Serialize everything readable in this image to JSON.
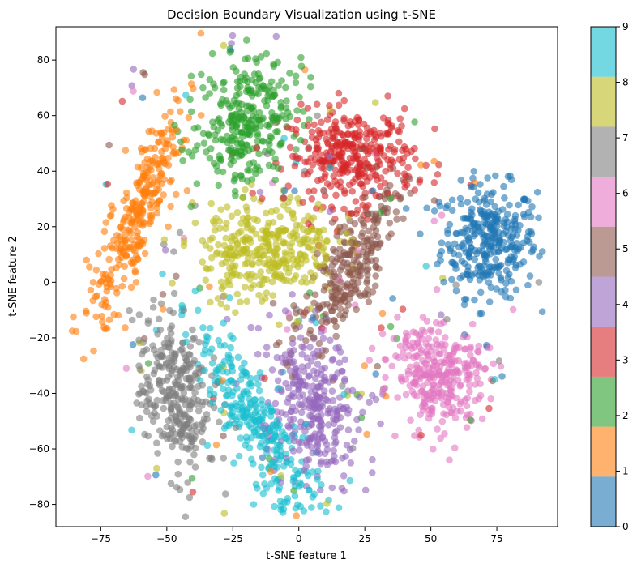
{
  "chart_data": {
    "type": "scatter",
    "title": "Decision Boundary Visualization using t-SNE",
    "xlabel": "t-SNE feature 1",
    "ylabel": "t-SNE feature 2",
    "xlim": [
      -92,
      98
    ],
    "ylim": [
      -88,
      92
    ],
    "xticks": [
      -75,
      -50,
      -25,
      0,
      25,
      50,
      75
    ],
    "xtick_labels": [
      "−75",
      "−50",
      "−25",
      "0",
      "25",
      "50",
      "75"
    ],
    "yticks": [
      -80,
      -60,
      -40,
      -20,
      0,
      20,
      40,
      60,
      80
    ],
    "ytick_labels": [
      "−80",
      "−60",
      "−40",
      "−20",
      "0",
      "20",
      "40",
      "60",
      "80"
    ],
    "grid": false,
    "alpha": 0.6,
    "colorbar": {
      "min": 0,
      "max": 9,
      "ticks": [
        "0",
        "1",
        "2",
        "3",
        "4",
        "5",
        "6",
        "7",
        "8",
        "9"
      ],
      "colors": [
        "#1f77b4",
        "#ff7f0e",
        "#2ca02c",
        "#d62728",
        "#9467bd",
        "#8c564b",
        "#e377c2",
        "#7f7f7f",
        "#bcbd22",
        "#17becf"
      ]
    },
    "clusters": [
      {
        "label": 0,
        "color": "#1f77b4",
        "center": [
          72,
          15
        ],
        "spread": [
          9,
          10
        ],
        "rotation": 0.0,
        "count": 320
      },
      {
        "label": 1,
        "color": "#ff7f0e",
        "center": [
          -62,
          22
        ],
        "spread": [
          4.5,
          22
        ],
        "rotation": -0.38,
        "count": 300
      },
      {
        "label": 2,
        "color": "#2ca02c",
        "center": [
          -20,
          58
        ],
        "spread": [
          9,
          13
        ],
        "rotation": -0.55,
        "count": 300
      },
      {
        "label": 3,
        "color": "#d62728",
        "center": [
          20,
          45
        ],
        "spread": [
          12,
          8.5
        ],
        "rotation": 0.0,
        "count": 340
      },
      {
        "label": 4,
        "color": "#9467bd",
        "center": [
          5,
          -45
        ],
        "spread": [
          8,
          14
        ],
        "rotation": 0.35,
        "count": 300
      },
      {
        "label": 5,
        "color": "#8c564b",
        "center": [
          20,
          6
        ],
        "spread": [
          5.5,
          18
        ],
        "rotation": -0.55,
        "count": 260
      },
      {
        "label": 6,
        "color": "#e377c2",
        "center": [
          52,
          -33
        ],
        "spread": [
          8.5,
          10
        ],
        "rotation": 0.45,
        "count": 300
      },
      {
        "label": 7,
        "color": "#7f7f7f",
        "center": [
          -47,
          -40
        ],
        "spread": [
          6.5,
          15
        ],
        "rotation": 0.12,
        "count": 300
      },
      {
        "label": 8,
        "color": "#bcbd22",
        "center": [
          -12,
          12
        ],
        "spread": [
          13,
          9
        ],
        "rotation": 0.12,
        "count": 340
      },
      {
        "label": 9,
        "color": "#17becf",
        "center": [
          -15,
          -52
        ],
        "spread": [
          6,
          20
        ],
        "rotation": 0.55,
        "count": 300
      }
    ],
    "outliers_per_class": 18
  }
}
